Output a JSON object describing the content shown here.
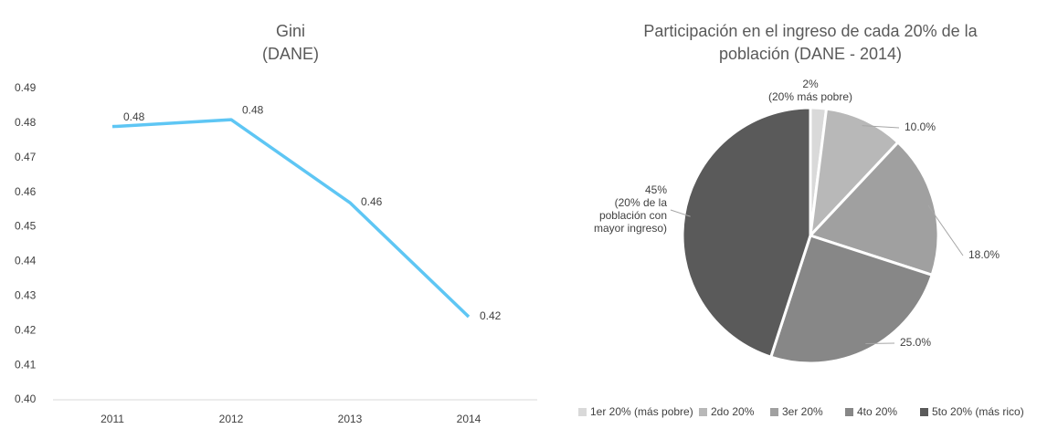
{
  "chart_data": [
    {
      "type": "line",
      "title": [
        "Gini",
        "(DANE)"
      ],
      "categories": [
        "2011",
        "2012",
        "2013",
        "2014"
      ],
      "values": [
        0.479,
        0.481,
        0.457,
        0.424
      ],
      "value_labels": [
        "0.48",
        "0.48",
        "0.46",
        "0.42"
      ],
      "color": "#5ec6f4",
      "ylim": [
        0.4,
        0.49
      ],
      "yticks": [
        {
          "value": 0.4,
          "label": "0.40"
        },
        0.41,
        0.42,
        0.43,
        0.44,
        0.45,
        0.46,
        0.47,
        0.48,
        0.49
      ]
    },
    {
      "type": "pie",
      "title": [
        "Participación en el ingreso de cada 20% de la",
        "población (DANE - 2014)"
      ],
      "categories": [
        "1er 20% (más pobre)",
        "2do 20%",
        "3er 20%",
        "4to 20%",
        "5to 20% (más rico)"
      ],
      "values": [
        2,
        10,
        18,
        25,
        45
      ],
      "value_labels": [
        "2%\n(20% más pobre)",
        "10.0%",
        "18.0%",
        "25.0%",
        "45%\n(20% de la\npoblación con\nmayor ingreso)"
      ],
      "colors": [
        "#d9d9d9",
        "#b8b8b8",
        "#a0a0a0",
        "#878787",
        "#5a5a5a"
      ],
      "legend": "bottom"
    }
  ]
}
